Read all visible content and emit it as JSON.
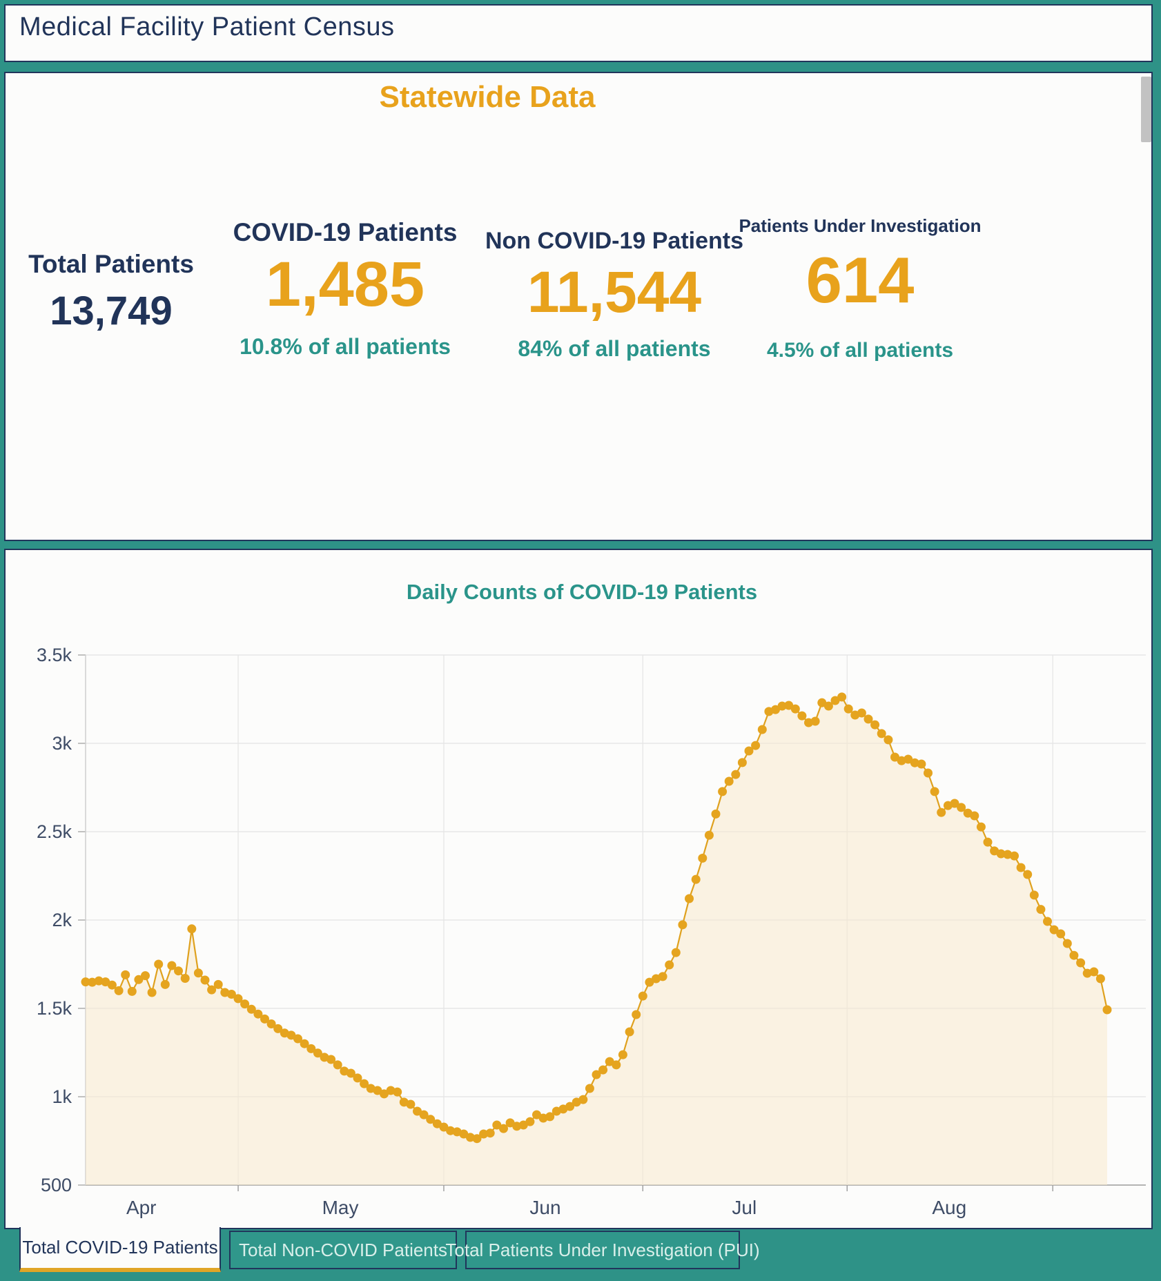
{
  "palette": {
    "background_teal": "#2E9287",
    "panel_white": "#FCFCFB",
    "navy": "#213459",
    "gold": "#E8A21C",
    "teal_text": "#2A948A"
  },
  "header": {
    "title": "Medical Facility Patient Census"
  },
  "stats": {
    "title": "Statewide Data",
    "cards": [
      {
        "label": "Total Patients",
        "value": "13,749",
        "pct": ""
      },
      {
        "label": "COVID-19 Patients",
        "value": "1,485",
        "pct": "10.8% of all patients"
      },
      {
        "label": "Non COVID-19 Patients",
        "value": "11,544",
        "pct": "84% of all patients"
      },
      {
        "label": "Patients Under Investigation",
        "value": "614",
        "pct": "4.5% of all patients"
      }
    ]
  },
  "tabs": [
    {
      "label": "Total COVID-19 Patients",
      "active": true
    },
    {
      "label": "Total Non-COVID Patients",
      "active": false
    },
    {
      "label": "Total Patients Under Investigation (PUI)",
      "active": false
    }
  ],
  "chart_data": {
    "type": "line",
    "title": "Daily Counts of COVID-19 Patients",
    "x_unit": "day",
    "x_tick_labels": [
      "Apr",
      "May",
      "Jun",
      "Jul",
      "Aug"
    ],
    "x_label_day_index": [
      8.4,
      38.4,
      69.3,
      99.3,
      130.2
    ],
    "x_gridline_day_index": [
      23,
      54,
      84,
      114.8,
      145.8
    ],
    "y_ticks": [
      500,
      1000,
      1500,
      2000,
      2500,
      3000,
      3500
    ],
    "y_tick_labels": [
      "500",
      "1k",
      "1.5k",
      "2k",
      "2.5k",
      "3k",
      "3.5k"
    ],
    "ylim": [
      500,
      3500
    ],
    "grid": true,
    "legend": "none",
    "colors": {
      "line": "#DFA11E",
      "marker": "#E5A41F",
      "fill": "rgba(247,233,205,0.55)",
      "gridline": "#E3E3E3",
      "axis_line": "#9B9B9B",
      "tick_text": "#3E4C66"
    },
    "series": [
      {
        "name": "Total COVID-19 Patients",
        "values": [
          1650,
          1648,
          1656,
          1650,
          1632,
          1600,
          1690,
          1596,
          1663,
          1685,
          1590,
          1750,
          1635,
          1742,
          1712,
          1670,
          1950,
          1700,
          1660,
          1605,
          1635,
          1590,
          1580,
          1555,
          1525,
          1495,
          1468,
          1440,
          1412,
          1385,
          1360,
          1348,
          1328,
          1300,
          1272,
          1247,
          1223,
          1211,
          1180,
          1145,
          1133,
          1106,
          1074,
          1047,
          1035,
          1016,
          1035,
          1027,
          969,
          957,
          918,
          898,
          872,
          847,
          828,
          808,
          801,
          789,
          770,
          763,
          789,
          794,
          840,
          820,
          852,
          833,
          840,
          859,
          898,
          879,
          887,
          918,
          930,
          945,
          969,
          984,
          1047,
          1125,
          1152,
          1199,
          1180,
          1238,
          1367,
          1465,
          1570,
          1648,
          1668,
          1680,
          1746,
          1816,
          1973,
          2121,
          2230,
          2350,
          2480,
          2600,
          2727,
          2785,
          2824,
          2891,
          2957,
          2988,
          3078,
          3180,
          3191,
          3211,
          3215,
          3195,
          3156,
          3117,
          3125,
          3230,
          3211,
          3242,
          3262,
          3195,
          3160,
          3172,
          3137,
          3105,
          3055,
          3020,
          2922,
          2902,
          2910,
          2890,
          2883,
          2832,
          2727,
          2609,
          2648,
          2660,
          2637,
          2605,
          2590,
          2527,
          2441,
          2391,
          2375,
          2371,
          2363,
          2297,
          2258,
          2141,
          2060,
          1992,
          1945,
          1922,
          1867,
          1800,
          1758,
          1699,
          1707,
          1668,
          1492
        ]
      }
    ]
  }
}
